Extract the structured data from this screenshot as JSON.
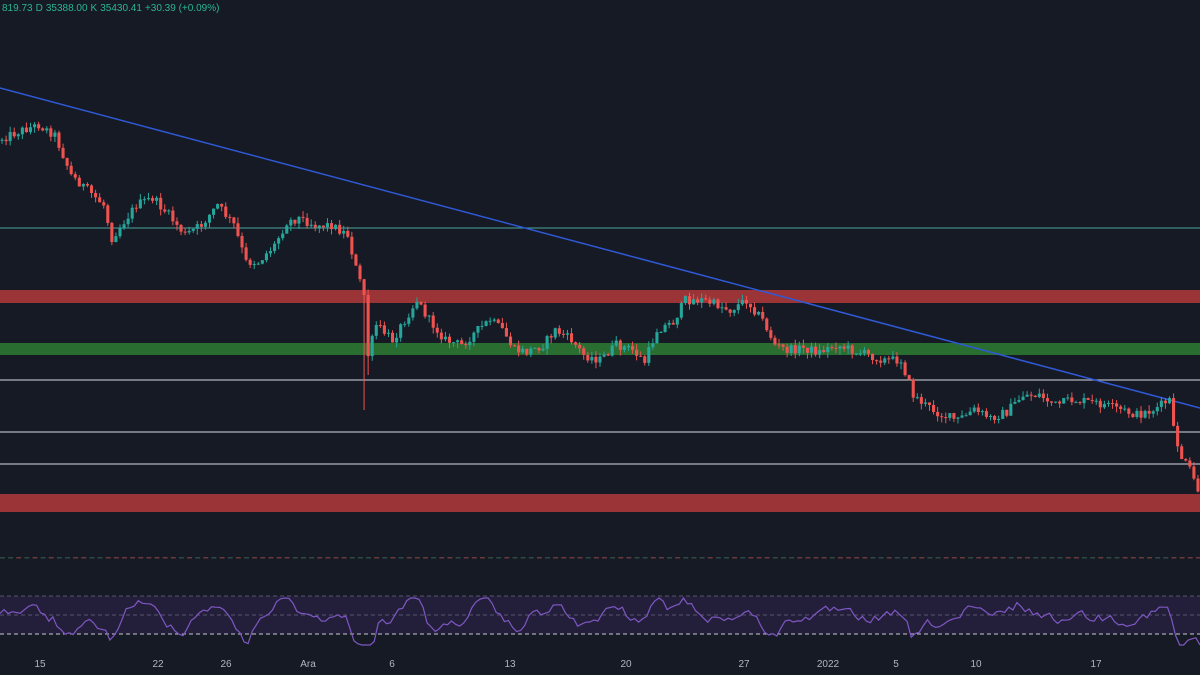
{
  "header": {
    "close_partial": "819.73",
    "low_label": "D",
    "low_value": "35388.00",
    "close_label": "K",
    "close_value": "35430.41",
    "change": "+30.39 (+0.09%)"
  },
  "colors": {
    "background": "#161a25",
    "up": "#26a69a",
    "down": "#ef5350",
    "trendline": "#2f59d6",
    "resistance_zone": "#b33a3a",
    "support_zone": "#2e7d32",
    "level_line": "#b0b4bd",
    "teal_line": "#4aa6a0",
    "rsi_line": "#7e57c2",
    "rsi_band": "#2a2245",
    "axis_text": "#b2b5be"
  },
  "chart_data": [
    {
      "type": "candlestick",
      "x_axis": {
        "ticks": [
          "15",
          "22",
          "26",
          "Ara",
          "6",
          "13",
          "20",
          "27",
          "2022",
          "5",
          "10",
          "17"
        ]
      },
      "price_sketch": [
        [
          0,
          140
        ],
        [
          6,
          130
        ],
        [
          10,
          125
        ],
        [
          14,
          135
        ],
        [
          18,
          175
        ],
        [
          22,
          190
        ],
        [
          26,
          205
        ],
        [
          28,
          238
        ],
        [
          34,
          205
        ],
        [
          38,
          198
        ],
        [
          42,
          215
        ],
        [
          46,
          235
        ],
        [
          50,
          225
        ],
        [
          54,
          205
        ],
        [
          58,
          225
        ],
        [
          61,
          262
        ],
        [
          64,
          262
        ],
        [
          68,
          245
        ],
        [
          71,
          222
        ],
        [
          74,
          218
        ],
        [
          78,
          225
        ],
        [
          82,
          225
        ],
        [
          86,
          235
        ],
        [
          88,
          268
        ],
        [
          90,
          295
        ],
        [
          91,
          355
        ],
        [
          93,
          325
        ],
        [
          97,
          340
        ],
        [
          100,
          320
        ],
        [
          103,
          300
        ],
        [
          106,
          320
        ],
        [
          110,
          340
        ],
        [
          114,
          345
        ],
        [
          118,
          330
        ],
        [
          121,
          320
        ],
        [
          124,
          330
        ],
        [
          127,
          350
        ],
        [
          130,
          352
        ],
        [
          134,
          345
        ],
        [
          137,
          330
        ],
        [
          141,
          340
        ],
        [
          144,
          355
        ],
        [
          148,
          360
        ],
        [
          152,
          345
        ],
        [
          156,
          350
        ],
        [
          159,
          362
        ],
        [
          162,
          330
        ],
        [
          166,
          322
        ],
        [
          169,
          300
        ],
        [
          173,
          300
        ],
        [
          177,
          305
        ],
        [
          180,
          310
        ],
        [
          184,
          300
        ],
        [
          188,
          320
        ],
        [
          191,
          345
        ],
        [
          194,
          350
        ],
        [
          198,
          348
        ],
        [
          202,
          352
        ],
        [
          206,
          345
        ],
        [
          210,
          350
        ],
        [
          214,
          355
        ],
        [
          218,
          360
        ],
        [
          222,
          360
        ],
        [
          225,
          395
        ],
        [
          228,
          405
        ],
        [
          232,
          415
        ],
        [
          236,
          420
        ],
        [
          240,
          410
        ],
        [
          244,
          418
        ],
        [
          248,
          412
        ],
        [
          252,
          395
        ],
        [
          256,
          395
        ],
        [
          260,
          405
        ],
        [
          264,
          400
        ],
        [
          268,
          402
        ],
        [
          272,
          405
        ],
        [
          276,
          410
        ],
        [
          280,
          415
        ],
        [
          284,
          410
        ],
        [
          288,
          400
        ],
        [
          289,
          430
        ],
        [
          291,
          458
        ],
        [
          293,
          470
        ],
        [
          295,
          490
        ]
      ],
      "wicks": [
        [
          90,
          410
        ],
        [
          91,
          375
        ]
      ],
      "levels": {
        "teal_line": 228,
        "resistance_zone": [
          290,
          303
        ],
        "support_zone": [
          343,
          355
        ],
        "gray_lines": [
          380,
          432,
          464
        ],
        "bottom_zone": [
          494,
          512
        ]
      },
      "trendline": [
        [
          0,
          88
        ],
        [
          1200,
          408
        ]
      ],
      "grid": false
    },
    {
      "type": "line",
      "name": "RSI",
      "band": [
        596,
        634
      ],
      "dashed_levels": [
        596,
        615,
        634
      ]
    }
  ]
}
